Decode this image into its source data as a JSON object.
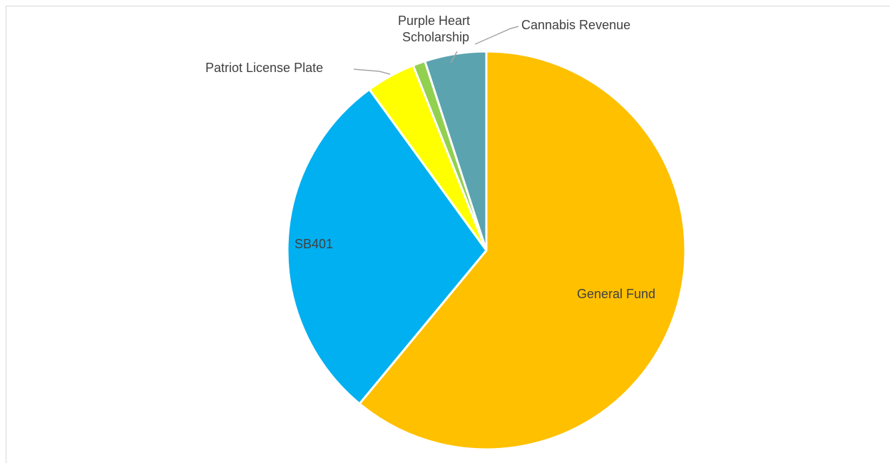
{
  "chart_data": {
    "type": "pie",
    "start_angle_deg": 0,
    "direction": "clockwise",
    "slices": [
      {
        "label": "General Fund",
        "value": 61.0,
        "color": "#FFC000"
      },
      {
        "label": "SB401",
        "value": 29.0,
        "color": "#00B0F0"
      },
      {
        "label": "Patriot License Plate",
        "value": 4.0,
        "color": "#FFFF00"
      },
      {
        "label": "Purple Heart Scholarship",
        "value": 1.0,
        "color": "#92D050"
      },
      {
        "label": "Cannabis Revenue",
        "value": 5.0,
        "color": "#5BA3AF"
      }
    ],
    "title": "",
    "legend": "none",
    "slice_border_color": "#FFFFFF"
  }
}
